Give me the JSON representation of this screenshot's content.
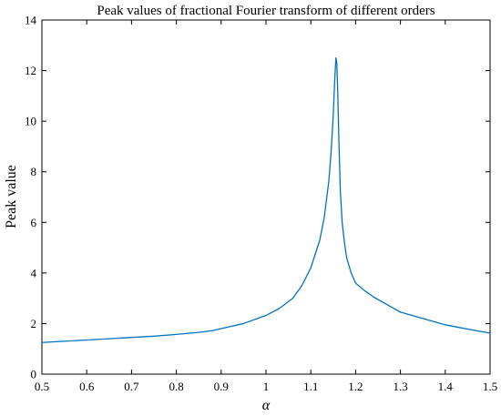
{
  "chart_data": {
    "type": "line",
    "title": "Peak values of fractional Fourier transform of different orders",
    "xlabel": "α",
    "ylabel": "Peak value",
    "xlim": [
      0.5,
      1.5
    ],
    "ylim": [
      0,
      14
    ],
    "xticks": [
      0.5,
      0.6,
      0.7,
      0.8,
      0.9,
      1,
      1.1,
      1.2,
      1.3,
      1.4,
      1.5
    ],
    "xtick_labels": [
      "0.5",
      "0.6",
      "0.7",
      "0.8",
      "0.9",
      "1",
      "1.1",
      "1.2",
      "1.3",
      "1.4",
      "1.5"
    ],
    "yticks": [
      0,
      2,
      4,
      6,
      8,
      10,
      12,
      14
    ],
    "ytick_labels": [
      "0",
      "2",
      "4",
      "6",
      "8",
      "10",
      "12",
      "14"
    ],
    "grid": false,
    "legend": "none",
    "series": [
      {
        "color": "#0072bd",
        "x": [
          0.5,
          0.55,
          0.6,
          0.65,
          0.7,
          0.75,
          0.8,
          0.85,
          0.88,
          0.9,
          0.95,
          1.0,
          1.03,
          1.06,
          1.08,
          1.1,
          1.12,
          1.13,
          1.14,
          1.145,
          1.15,
          1.153,
          1.156,
          1.158,
          1.16,
          1.163,
          1.166,
          1.17,
          1.175,
          1.18,
          1.19,
          1.2,
          1.22,
          1.24,
          1.26,
          1.28,
          1.3,
          1.35,
          1.4,
          1.45,
          1.5
        ],
        "y": [
          1.25,
          1.3,
          1.35,
          1.4,
          1.45,
          1.5,
          1.57,
          1.65,
          1.72,
          1.8,
          2.0,
          2.32,
          2.6,
          3.0,
          3.5,
          4.2,
          5.3,
          6.2,
          7.6,
          8.7,
          10.2,
          11.5,
          12.5,
          12.3,
          11.2,
          9.0,
          7.2,
          6.0,
          5.2,
          4.6,
          4.0,
          3.6,
          3.3,
          3.05,
          2.85,
          2.65,
          2.45,
          2.2,
          1.95,
          1.78,
          1.62
        ]
      }
    ]
  }
}
